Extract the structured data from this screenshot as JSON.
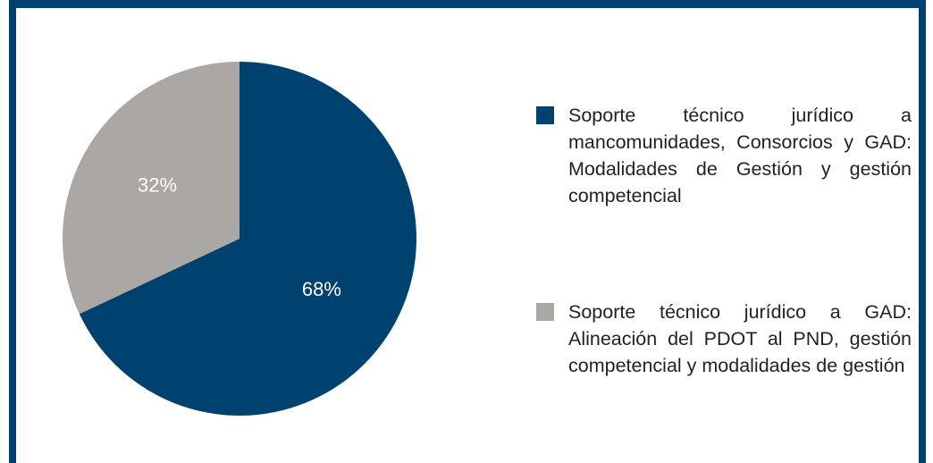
{
  "chart_data": {
    "type": "pie",
    "categories": [
      "Soporte técnico jurídico a mancomunidades, Consorcios y GAD: Modalidades de Gestión y gestión competencial",
      "Soporte técnico jurídico a GAD: Alineación del PDOT al PND, gestión competencial y modalidades de gestión"
    ],
    "values": [
      68,
      32
    ],
    "value_labels": [
      "68%",
      "32%"
    ],
    "colors": [
      "#00426f",
      "#aba7a4"
    ],
    "start_angle": 90,
    "direction": "clockwise"
  }
}
